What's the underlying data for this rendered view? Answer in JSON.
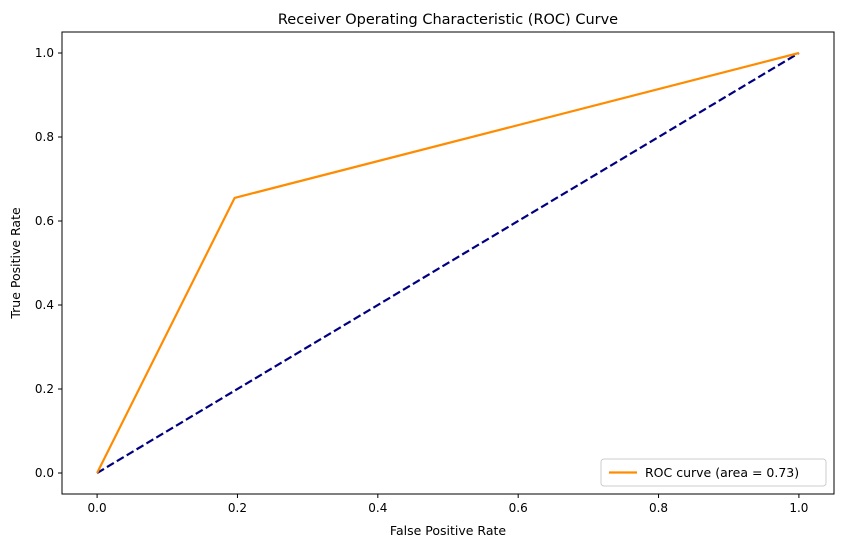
{
  "chart_data": {
    "type": "line",
    "title": "Receiver Operating Characteristic (ROC) Curve",
    "xlabel": "False Positive Rate",
    "ylabel": "True Positive Rate",
    "xlim": [
      -0.05,
      1.05
    ],
    "ylim": [
      -0.05,
      1.05
    ],
    "xticks": [
      0.0,
      0.2,
      0.4,
      0.6,
      0.8,
      1.0
    ],
    "yticks": [
      0.0,
      0.2,
      0.4,
      0.6,
      0.8,
      1.0
    ],
    "xtick_labels": [
      "0.0",
      "0.2",
      "0.4",
      "0.6",
      "0.8",
      "1.0"
    ],
    "ytick_labels": [
      "0.0",
      "0.2",
      "0.4",
      "0.6",
      "0.8",
      "1.0"
    ],
    "grid": false,
    "legend_position": "lower-right",
    "series": [
      {
        "name": "ROC curve (area = 0.73)",
        "color": "#ff8c00",
        "style": "solid",
        "x": [
          0.0,
          0.196,
          1.0
        ],
        "y": [
          0.0,
          0.655,
          1.0
        ]
      },
      {
        "color": "#000080",
        "style": "dashed",
        "x": [
          0.0,
          1.0
        ],
        "y": [
          0.0,
          1.0
        ]
      }
    ]
  }
}
